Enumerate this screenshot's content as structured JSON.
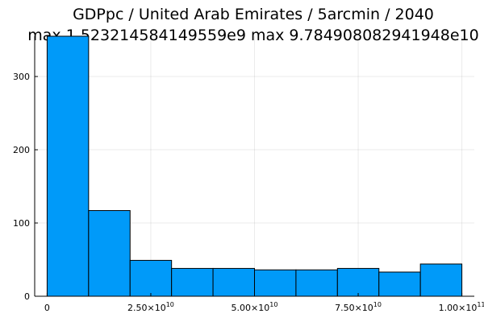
{
  "chart_data": {
    "type": "bar",
    "title": "GDPpc / United Arab Emirates / 5arcmin / 2040",
    "subtitle": "max 1.523214584149559e9  max 9.784908082941948e10",
    "xlabel": "",
    "ylabel": "",
    "bin_edges": [
      0,
      10000000000,
      20000000000,
      30000000000,
      40000000000,
      50000000000,
      60000000000,
      70000000000,
      80000000000,
      90000000000,
      100000000000
    ],
    "values": [
      355,
      117,
      49,
      38,
      38,
      36,
      36,
      38,
      33,
      44
    ],
    "xlim": [
      -3000000000,
      103000000000
    ],
    "ylim": [
      0,
      355
    ],
    "x_ticks": [
      {
        "value": 0,
        "mantissa": "0",
        "exponent": ""
      },
      {
        "value": 25000000000,
        "mantissa": "2.50×10",
        "exponent": "10"
      },
      {
        "value": 50000000000,
        "mantissa": "5.00×10",
        "exponent": "10"
      },
      {
        "value": 75000000000,
        "mantissa": "7.50×10",
        "exponent": "10"
      },
      {
        "value": 100000000000,
        "mantissa": "1.00×10",
        "exponent": "11"
      }
    ],
    "y_ticks": [
      {
        "value": 0,
        "label": "0"
      },
      {
        "value": 100,
        "label": "100"
      },
      {
        "value": 200,
        "label": "200"
      },
      {
        "value": 300,
        "label": "300"
      }
    ],
    "grid": true,
    "legend": "none",
    "bar_color": "#009af9",
    "edge_color": "#000000"
  }
}
